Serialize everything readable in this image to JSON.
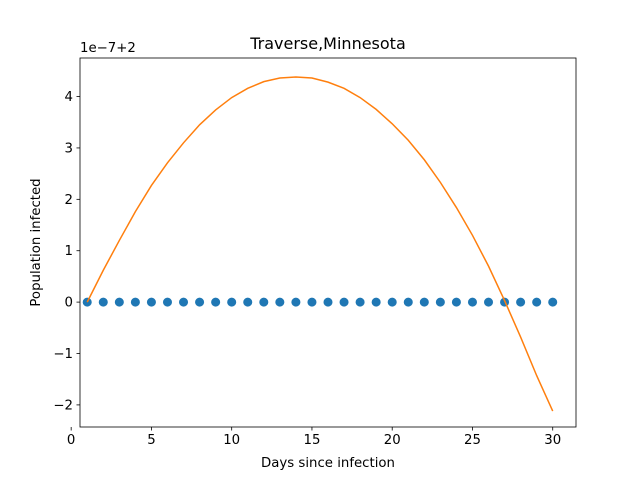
{
  "chart_data": {
    "type": "scatter",
    "title": "Traverse,Minnesota",
    "xlabel": "Days since infection",
    "ylabel": "Population infected",
    "offset_label": "1e−7+2",
    "xlim": [
      0.55,
      31.45
    ],
    "ylim": [
      -2.43,
      4.75
    ],
    "x_ticks": [
      0,
      5,
      10,
      15,
      20,
      25,
      30
    ],
    "y_ticks": [
      -2,
      -1,
      0,
      1,
      2,
      3,
      4
    ],
    "y_tick_labels": [
      "−2",
      "−1",
      "0",
      "1",
      "2",
      "3",
      "4"
    ],
    "grid": false,
    "series": [
      {
        "kind": "scatter",
        "color": "#1f77b4",
        "x": [
          1,
          2,
          3,
          4,
          5,
          6,
          7,
          8,
          9,
          10,
          11,
          12,
          13,
          14,
          15,
          16,
          17,
          18,
          19,
          20,
          21,
          22,
          23,
          24,
          25,
          26,
          27,
          28,
          29,
          30
        ],
        "y": [
          0,
          0,
          0,
          0,
          0,
          0,
          0,
          0,
          0,
          0,
          0,
          0,
          0,
          0,
          0,
          0,
          0,
          0,
          0,
          0,
          0,
          0,
          0,
          0,
          0,
          0,
          0,
          0,
          0,
          0
        ]
      },
      {
        "kind": "line",
        "color": "#ff7f0e",
        "x": [
          1,
          2,
          3,
          4,
          5,
          6,
          7,
          8,
          9,
          10,
          11,
          12,
          13,
          14,
          15,
          16,
          17,
          18,
          19,
          20,
          21,
          22,
          23,
          24,
          25,
          26,
          27,
          28,
          29,
          30
        ],
        "y": [
          0.0,
          0.62,
          1.2,
          1.76,
          2.27,
          2.71,
          3.1,
          3.45,
          3.74,
          3.98,
          4.16,
          4.29,
          4.36,
          4.38,
          4.36,
          4.28,
          4.16,
          3.98,
          3.75,
          3.47,
          3.15,
          2.77,
          2.33,
          1.84,
          1.3,
          0.7,
          0.03,
          -0.68,
          -1.43,
          -2.12
        ]
      }
    ]
  }
}
